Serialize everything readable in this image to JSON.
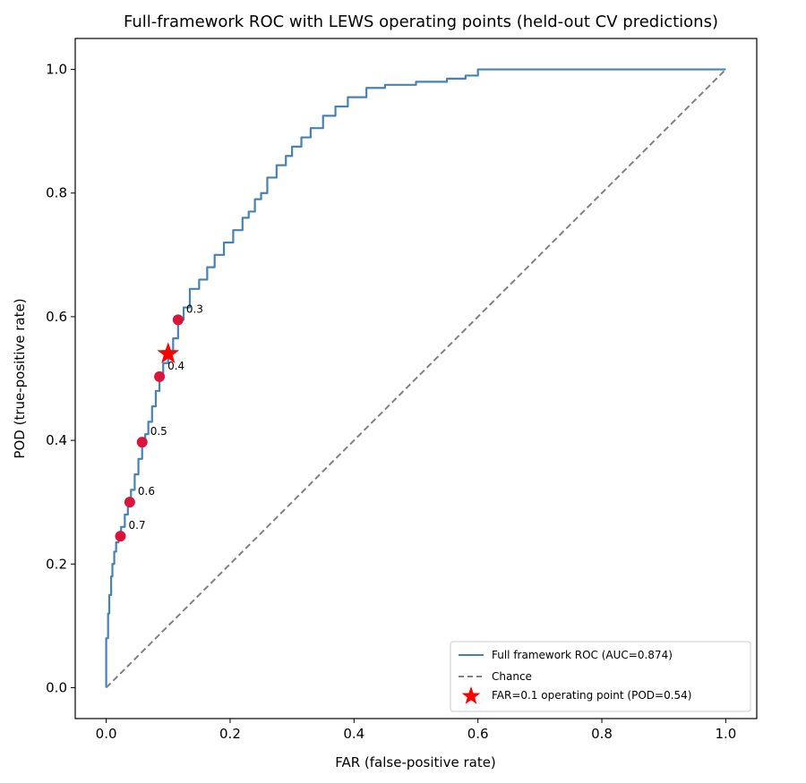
{
  "chart_data": {
    "type": "line",
    "title": "Full-framework ROC with LEWS operating points (held-out CV predictions)",
    "xlabel": "FAR (false-positive rate)",
    "ylabel": "POD (true-positive rate)",
    "xlim": [
      -0.05,
      1.05
    ],
    "ylim": [
      -0.05,
      1.05
    ],
    "xticks": [
      "0.0",
      "0.2",
      "0.4",
      "0.6",
      "0.8",
      "1.0"
    ],
    "yticks": [
      "0.0",
      "0.2",
      "0.4",
      "0.6",
      "0.8",
      "1.0"
    ],
    "grid": false,
    "legend_position": "lower-right",
    "colors": {
      "roc": "#4682b4",
      "chance": "#808080",
      "operating_points": "#dc143c",
      "star": "#ff0000"
    },
    "series": [
      {
        "name": "Full framework ROC (AUC=0.874)",
        "style": "solid",
        "x": [
          0.0,
          0.0,
          0.003,
          0.005,
          0.008,
          0.01,
          0.013,
          0.016,
          0.02,
          0.024,
          0.03,
          0.035,
          0.04,
          0.046,
          0.052,
          0.058,
          0.063,
          0.068,
          0.074,
          0.08,
          0.086,
          0.092,
          0.1,
          0.108,
          0.116,
          0.125,
          0.135,
          0.15,
          0.163,
          0.175,
          0.19,
          0.205,
          0.22,
          0.23,
          0.24,
          0.25,
          0.26,
          0.275,
          0.29,
          0.3,
          0.315,
          0.33,
          0.35,
          0.37,
          0.39,
          0.42,
          0.45,
          0.5,
          0.55,
          0.58,
          0.6,
          0.7,
          0.8,
          0.9,
          1.0
        ],
        "y": [
          0.0,
          0.08,
          0.12,
          0.15,
          0.18,
          0.2,
          0.22,
          0.235,
          0.245,
          0.26,
          0.28,
          0.3,
          0.32,
          0.345,
          0.37,
          0.395,
          0.41,
          0.43,
          0.455,
          0.48,
          0.505,
          0.525,
          0.54,
          0.565,
          0.595,
          0.615,
          0.645,
          0.66,
          0.68,
          0.7,
          0.72,
          0.74,
          0.76,
          0.77,
          0.79,
          0.8,
          0.825,
          0.845,
          0.86,
          0.875,
          0.89,
          0.905,
          0.925,
          0.94,
          0.955,
          0.97,
          0.975,
          0.98,
          0.985,
          0.99,
          1.0,
          1.0,
          1.0,
          1.0,
          1.0
        ]
      },
      {
        "name": "Chance",
        "style": "dashed",
        "x": [
          0.0,
          1.0
        ],
        "y": [
          0.0,
          1.0
        ]
      }
    ],
    "operating_points": [
      {
        "label": "0.3",
        "x": 0.116,
        "y": 0.595
      },
      {
        "label": "0.4",
        "x": 0.086,
        "y": 0.503
      },
      {
        "label": "0.5",
        "x": 0.058,
        "y": 0.397
      },
      {
        "label": "0.6",
        "x": 0.038,
        "y": 0.3
      },
      {
        "label": "0.7",
        "x": 0.023,
        "y": 0.245
      }
    ],
    "highlight_point": {
      "name": "FAR=0.1 operating point (POD=0.54)",
      "x": 0.1,
      "y": 0.54
    }
  }
}
